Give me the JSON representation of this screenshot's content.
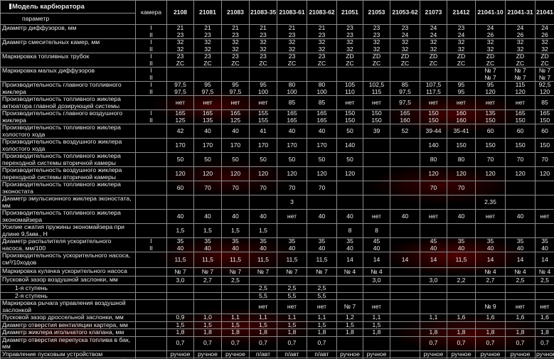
{
  "header": {
    "title": "Модель карбюратора",
    "subtitle": "параметр",
    "camera_label": "камера",
    "models": [
      "2108",
      "21081",
      "21083",
      "21083-35",
      "21083-61",
      "21083-62",
      "21051",
      "21053",
      "21053-62",
      "21073",
      "21412",
      "21041-10",
      "21041-31",
      "21041-35"
    ]
  },
  "rows": [
    {
      "label": "Диаметр диффузоров, мм",
      "cam": "I\nII",
      "vals": [
        "21\n23",
        "21\n23",
        "21\n23",
        "21\n23",
        "21\n23",
        "21\n23",
        "23\n23",
        "23\n23",
        "23\n24",
        "24\n24",
        "23\n24",
        "24\n26",
        "24\n26",
        "24\n26"
      ]
    },
    {
      "label": "Диаметр смесительных камер, мм",
      "cam": "I\nII",
      "vals": [
        "32\n32",
        "32\n32",
        "32\n32",
        "32\n32",
        "32\n32",
        "32\n32",
        "32\n32",
        "32\n32",
        "32\n32",
        "32\n32",
        "32\n32",
        "32\n32",
        "32\n32",
        "32\n32"
      ]
    },
    {
      "label": "Маркировка топливных трубок",
      "cam": "I\nII",
      "vals": [
        "23\nZC",
        "23\nZC",
        "23\nZC",
        "23\nZC",
        "23\nZC",
        "23\nZC",
        "ZD\nZC",
        "ZD\nZC",
        "ZD\nZC",
        "ZD\nZC",
        "ZD\nZC",
        "ZD\nZC",
        "ZD\nZC",
        "ZD\nZC"
      ]
    },
    {
      "label": "Маркировка малых диффузоров",
      "cam": "I\nII",
      "vals": [
        "",
        "",
        "",
        "",
        "",
        "",
        "",
        "",
        "",
        "",
        "",
        "№ 7\n№ 7",
        "№ 7\n№ 7",
        "№ 7\n№ 7"
      ]
    },
    {
      "label": "Производительность главного топливного жиклера",
      "cam": "I\nII",
      "vals": [
        "97,5\n97,5",
        "95\n97,5",
        "95\n97,5",
        "95\n100",
        "80\n100",
        "80\n100",
        "105\n110",
        "102,5\n115",
        "85\n97,5",
        "107,5\n117,5",
        "95\n95",
        "95\n120",
        "115\n120",
        "92,5\n120"
      ]
    },
    {
      "label": "Производительность топливного жиклера актюатора главной дозирующей системы",
      "cam": "",
      "vals": [
        "нет",
        "нет",
        "нет",
        "нет",
        "85",
        "85",
        "нет",
        "нет",
        "97,5",
        "нет",
        "нет",
        "нет",
        "нет",
        "85"
      ]
    },
    {
      "label": "Производительность главного воздушного жиклера",
      "cam": "I\nII",
      "vals": [
        "165\n125",
        "165\n135",
        "165\n125",
        "155\n155",
        "165\n165",
        "165\n165",
        "150\n150",
        "150\n150",
        "165\n160",
        "150\n150",
        "160\n160",
        "135\n150",
        "165\n150",
        "165\n150"
      ]
    },
    {
      "label": "Производительность топливного жиклера холостого хода",
      "cam": "",
      "vals": [
        "42",
        "40",
        "40",
        "41",
        "40",
        "40",
        "50",
        "39",
        "52",
        "39-44",
        "35-41",
        "60",
        "60",
        "60"
      ]
    },
    {
      "label": "Производительность воздушного жиклера холостого хода",
      "cam": "",
      "vals": [
        "170",
        "170",
        "170",
        "170",
        "170",
        "170",
        "140",
        "",
        "",
        "140",
        "150",
        "150",
        "150",
        "150"
      ]
    },
    {
      "label": "Производительность топливного жиклера переходной системы вторичной камеры",
      "cam": "",
      "vals": [
        "50",
        "50",
        "50",
        "50",
        "50",
        "50",
        "50",
        "",
        "",
        "80",
        "80",
        "70",
        "70",
        "70"
      ]
    },
    {
      "label": "Производительность воздушного жиклера переходной системы вторичной камеры",
      "cam": "",
      "vals": [
        "120",
        "120",
        "120",
        "120",
        "120",
        "120",
        "120",
        "",
        "",
        "120",
        "120",
        "120",
        "120",
        "120"
      ]
    },
    {
      "label": "Производительность топливного жиклера эконостата",
      "cam": "",
      "vals": [
        "60",
        "70",
        "70",
        "70",
        "70",
        "70",
        "",
        "",
        "",
        "70",
        "70",
        "",
        "",
        ""
      ]
    },
    {
      "label": "Диаметр эмульсионного жиклера эконостата, мм",
      "cam": "",
      "vals": [
        "",
        "",
        "",
        "",
        "3",
        "",
        "",
        "",
        "",
        "",
        "",
        "2,35",
        "",
        ""
      ]
    },
    {
      "label": "Производительность топливного жиклера экономайзера",
      "cam": "",
      "vals": [
        "40",
        "40",
        "40",
        "40",
        "нет",
        "40",
        "40",
        "нет",
        "40",
        "нет",
        "40",
        "нет",
        "40",
        "нет"
      ]
    },
    {
      "label": "Усилие сжатия пружины экономайзера при длине 9,5мм., Н",
      "cam": "",
      "vals": [
        "1,5",
        "1,5",
        "1,5",
        "1,5",
        "",
        "",
        "8",
        "8",
        "",
        "",
        "",
        "",
        "",
        ""
      ]
    },
    {
      "label": "Диаметр распылителя ускорительного насоса, мм/100",
      "cam": "I\nII",
      "vals": [
        "35\n40",
        "35\n40",
        "35\n40",
        "35\n40",
        "35\n40",
        "35\n40",
        "35\n40",
        "45\n40",
        "",
        "45\n40",
        "35\n40",
        "35\n40",
        "35\n40",
        "35\n40"
      ]
    },
    {
      "label": "Производительность ускорительного насоса, см³/10ходов",
      "cam": "",
      "vals": [
        "11,5",
        "11,5",
        "11,5",
        "11,5",
        "11,5",
        "11,5",
        "14",
        "14",
        "14",
        "14",
        "11,5",
        "14",
        "14",
        "14"
      ]
    },
    {
      "label": "Маркировка кулачка ускорительного насоса",
      "cam": "",
      "vals": [
        "№ 7",
        "№ 7",
        "№ 7",
        "№ 7",
        "№ 7",
        "№ 7",
        "№ 4",
        "№ 4",
        "",
        "",
        "",
        "№ 4",
        "№ 4",
        "№ 4"
      ]
    },
    {
      "label": "Пусковой зазор воздушной заслонки, мм",
      "cam": "",
      "vals": [
        "3,0",
        "2,7",
        "2,5",
        "",
        "",
        "",
        "",
        "3,0",
        "",
        "3,0",
        "2,2",
        "2,7",
        "2,5",
        "2,5"
      ]
    },
    {
      "label": "1-я ступень",
      "cam": "",
      "vals": [
        "",
        "",
        "",
        "2,5",
        "2,5",
        "2,5",
        "",
        "",
        "",
        "",
        "",
        "",
        "",
        ""
      ],
      "indent": true
    },
    {
      "label": "2-я ступень",
      "cam": "",
      "vals": [
        "",
        "",
        "",
        "5,5",
        "5,5",
        "5,5",
        "",
        "",
        "",
        "",
        "",
        "",
        "",
        ""
      ],
      "indent": true
    },
    {
      "label": "Маркировка рычага управления воздушной заслонкой",
      "cam": "",
      "vals": [
        "",
        "",
        "",
        "нет",
        "нет",
        "нет",
        "№ 7",
        "нет",
        "",
        "",
        "",
        "№ 9",
        "нет",
        "нет"
      ]
    },
    {
      "label": "Пусковой зазор дроссельной заслонки, мм",
      "cam": "",
      "vals": [
        "0,9",
        "1,0",
        "1,1",
        "1,1",
        "1,1",
        "1,1",
        "1,2",
        "1,1",
        "",
        "1,1",
        "1,6",
        "1,6",
        "1,6",
        "1,6"
      ]
    },
    {
      "label": "Диаметр отверстия вентиляции картера, мм",
      "cam": "",
      "vals": [
        "1,5",
        "1,5",
        "1,5",
        "1,5",
        "1,5",
        "1,5",
        "1,5",
        "1,5",
        "",
        "",
        "",
        "",
        "",
        ""
      ]
    },
    {
      "label": "Диаметр жиклера игольчатого клапана, мм",
      "cam": "",
      "vals": [
        "1,8",
        "1,8",
        "1,8",
        "1,8",
        "1,8",
        "1,8",
        "1,8",
        "1,8",
        "",
        "1,8",
        "1,8",
        "1,8",
        "1,8",
        "1,8"
      ]
    },
    {
      "label": "Диаметр отверстия перепуска топлива в бак, мм",
      "cam": "",
      "vals": [
        "0,7",
        "0,7",
        "0,7",
        "0,7",
        "0,7",
        "0,7",
        "",
        "",
        "",
        "0,7",
        "0,7",
        "0,7",
        "0,7",
        "0,7"
      ]
    },
    {
      "label": "Управление пусковым устройством",
      "cam": "",
      "vals": [
        "ручное",
        "ручное",
        "ручное",
        "п/авт",
        "п/авт",
        "п/авт",
        "ручное",
        "ручное",
        "",
        "ручное",
        "ручное",
        "ручное",
        "ручное",
        "ручное"
      ]
    },
    {
      "label": "Наличие штуцера вентиляции поплавковой камеры",
      "cam": "",
      "vals": [
        "нет",
        "нет",
        "нет",
        "нет",
        "есть",
        "есть",
        "нет",
        "нет",
        "есть",
        "нет",
        "нет",
        "нет",
        "нет",
        "нет"
      ]
    }
  ]
}
